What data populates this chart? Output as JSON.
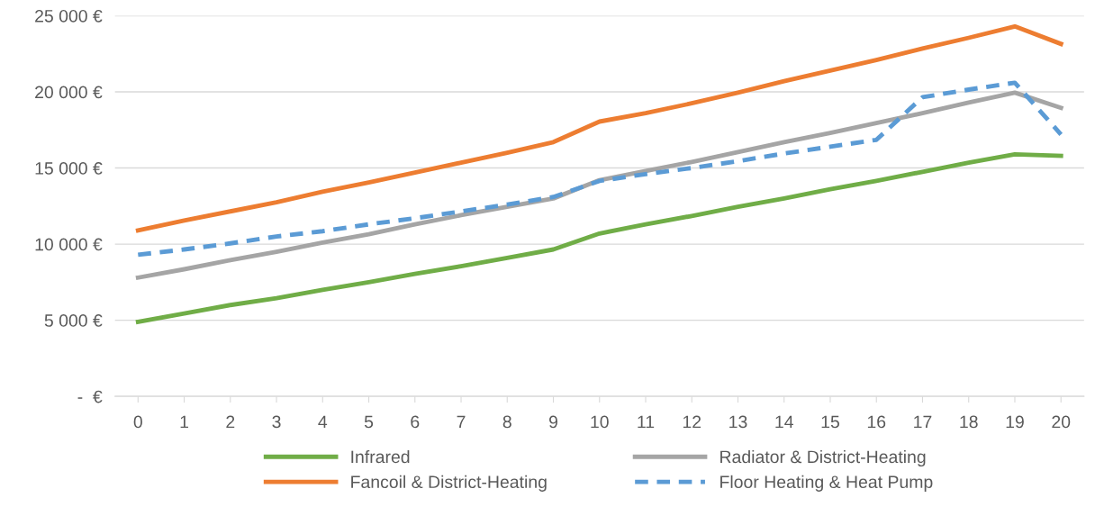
{
  "chart_data": {
    "type": "line",
    "categories": [
      "0",
      "1",
      "2",
      "3",
      "4",
      "5",
      "6",
      "7",
      "8",
      "9",
      "10",
      "11",
      "12",
      "13",
      "14",
      "15",
      "16",
      "17",
      "18",
      "19",
      "20"
    ],
    "series": [
      {
        "name": "Infrared",
        "color": "#70ad47",
        "line_style": "solid",
        "values": [
          4900,
          5450,
          6000,
          6450,
          7000,
          7500,
          8050,
          8550,
          9100,
          9650,
          10700,
          11300,
          11850,
          12450,
          13000,
          13600,
          14150,
          14750,
          15350,
          15900,
          15800
        ]
      },
      {
        "name": "Fancoil & District-Heating",
        "color": "#ed7d31",
        "line_style": "solid",
        "values": [
          10900,
          11550,
          12150,
          12750,
          13450,
          14050,
          14700,
          15350,
          16000,
          16700,
          18050,
          18600,
          19250,
          19950,
          20700,
          21400,
          22100,
          22850,
          23550,
          24300,
          23150
        ]
      },
      {
        "name": "Radiator & District-Heating",
        "color": "#a5a5a5",
        "line_style": "solid",
        "values": [
          7800,
          8350,
          8950,
          9500,
          10100,
          10650,
          11300,
          11900,
          12450,
          13000,
          14200,
          14800,
          15400,
          16050,
          16700,
          17300,
          17950,
          18600,
          19300,
          19950,
          18950
        ]
      },
      {
        "name": "Floor Heating & Heat Pump",
        "color": "#5b9bd5",
        "line_style": "dashed",
        "values": [
          9300,
          9650,
          10050,
          10500,
          10850,
          11300,
          11700,
          12150,
          12600,
          13100,
          14150,
          14600,
          15000,
          15450,
          15950,
          16400,
          16850,
          19650,
          20150,
          20600,
          17200
        ]
      }
    ],
    "ylim": [
      0,
      25000
    ],
    "yticks": [
      {
        "value": 0,
        "label": "-  €"
      },
      {
        "value": 5000,
        "label": "5 000 €"
      },
      {
        "value": 10000,
        "label": "10 000 €"
      },
      {
        "value": 15000,
        "label": "15 000 €"
      },
      {
        "value": 20000,
        "label": "20 000 €"
      },
      {
        "value": 25000,
        "label": "25 000 €"
      }
    ],
    "grid": "y",
    "legend": "bottom",
    "marker": "none"
  }
}
